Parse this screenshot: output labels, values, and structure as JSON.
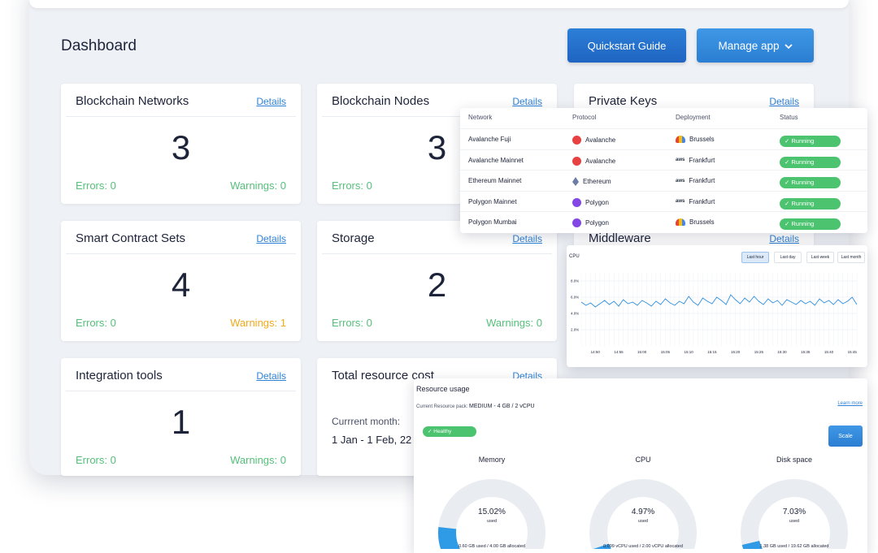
{
  "header": {
    "title": "Dashboard",
    "quickstart_label": "Quickstart Guide",
    "manage_label": "Manage app"
  },
  "cards": [
    {
      "title": "Blockchain Networks",
      "link": "Details",
      "value": "3",
      "errors": "Errors: 0",
      "warnings": "Warnings: 0"
    },
    {
      "title": "Blockchain Nodes",
      "link": "Details",
      "value": "3",
      "errors": "Errors: 0",
      "warnings": ""
    },
    {
      "title": "Private Keys",
      "link": "Details"
    },
    {
      "title": "Smart Contract Sets",
      "link": "Details",
      "value": "4",
      "errors": "Errors: 0",
      "warnings": "Warnings: 1"
    },
    {
      "title": "Storage",
      "link": "Details",
      "value": "2",
      "errors": "Errors: 0",
      "warnings": "Warnings: 0"
    },
    {
      "title": "Middleware",
      "link": "Details"
    },
    {
      "title": "Integration tools",
      "link": "Details",
      "value": "1",
      "errors": "Errors: 0",
      "warnings": "Warnings: 0"
    },
    {
      "title": "Total resource cost",
      "link": "Details",
      "month_label": "Currrent month:",
      "range": "1 Jan - 1 Feb, 22"
    }
  ],
  "networks": {
    "headers": [
      "Network",
      "Protocol",
      "Deployment",
      "Status"
    ],
    "rows": [
      {
        "network": "Avalanche Fuji",
        "protocol": "Avalanche",
        "protocol_icon": "avalanche-icon",
        "deployment": "Brussels",
        "deployment_icon": "google-cloud-icon",
        "status": "✓ Running"
      },
      {
        "network": "Avalanche Mainnet",
        "protocol": "Avalanche",
        "protocol_icon": "avalanche-icon",
        "deployment": "Frankfurt",
        "deployment_icon": "aws-icon",
        "status": "✓ Running"
      },
      {
        "network": "Ethereum Mainnet",
        "protocol": "Ethereum",
        "protocol_icon": "ethereum-icon",
        "deployment": "Frankfurt",
        "deployment_icon": "aws-icon",
        "status": "✓ Running"
      },
      {
        "network": "Polygon Mainnet",
        "protocol": "Polygon",
        "protocol_icon": "polygon-icon",
        "deployment": "Frankfurt",
        "deployment_icon": "aws-icon",
        "status": "✓ Running"
      },
      {
        "network": "Polygon Mumbai",
        "protocol": "Polygon",
        "protocol_icon": "polygon-icon",
        "deployment": "Brussels",
        "deployment_icon": "google-cloud-icon",
        "status": "✓ Running"
      }
    ]
  },
  "cpu_chart": {
    "label": "CPU",
    "buttons": [
      "Last hour",
      "Last day",
      "Last week",
      "Last month"
    ],
    "active_button": "Last hour"
  },
  "chart_data": {
    "type": "line",
    "title": "CPU",
    "x": [
      "14:47",
      "14:48",
      "14:49",
      "14:50",
      "14:51",
      "14:52",
      "14:53",
      "14:54",
      "14:55",
      "14:56",
      "14:57",
      "14:58",
      "14:59",
      "15:00",
      "15:01",
      "15:02",
      "15:03",
      "15:04",
      "15:05",
      "15:06",
      "15:07",
      "15:08",
      "15:09",
      "15:10",
      "15:11",
      "15:12",
      "15:13",
      "15:14",
      "15:15",
      "15:16",
      "15:17",
      "15:18",
      "15:19",
      "15:20",
      "15:21",
      "15:22",
      "15:23",
      "15:24",
      "15:25",
      "15:26",
      "15:27",
      "15:28",
      "15:29",
      "15:30",
      "15:31",
      "15:32",
      "15:33",
      "15:34",
      "15:35",
      "15:36",
      "15:37",
      "15:38",
      "15:39",
      "15:40",
      "15:41",
      "15:42",
      "15:43",
      "15:44",
      "15:45",
      "15:46"
    ],
    "series": [
      {
        "values": [
          5.4,
          5.0,
          5.3,
          4.8,
          5.2,
          5.6,
          5.1,
          5.5,
          4.9,
          5.7,
          5.2,
          5.4,
          5.0,
          5.6,
          5.3,
          4.9,
          5.5,
          5.1,
          5.8,
          5.3,
          5.0,
          5.5,
          5.2,
          6.1,
          5.4,
          5.0,
          5.9,
          5.5,
          5.2,
          6.0,
          5.6,
          5.1,
          6.3,
          5.7,
          5.2,
          5.9,
          5.4,
          6.1,
          5.5,
          5.1,
          5.8,
          5.3,
          5.6,
          5.0,
          5.7,
          5.4,
          5.1,
          5.6,
          5.2,
          5.5,
          5.0,
          5.8,
          5.3,
          5.6,
          5.1,
          5.7,
          5.2,
          5.5,
          6.0,
          5.1
        ]
      }
    ],
    "x_ticks": [
      "14:50",
      "14:55",
      "15:00",
      "15:05",
      "15:10",
      "15:15",
      "15:20",
      "15:25",
      "15:30",
      "15:35",
      "15:40",
      "15:45"
    ],
    "y_ticks": [
      "2.0%",
      "4.0%",
      "6.0%",
      "8.0%"
    ],
    "ylim": [
      0,
      9
    ],
    "grid": true,
    "color": "#2f8fe0"
  },
  "resource": {
    "title": "Resource usage",
    "pack_label": "Current Resource pack:",
    "pack_value": "MEDIUM -  4 GB / 2 vCPU",
    "learn_more": "Learn more",
    "health": "✓ Healthy",
    "scale_label": "Scale",
    "gauges": [
      {
        "label": "Memory",
        "percent": "15.02%",
        "fraction": 0.1502,
        "used": "used",
        "footer": "0.60 GB used / 4.00 GB allocated"
      },
      {
        "label": "CPU",
        "percent": "4.97%",
        "fraction": 0.0497,
        "used": "used",
        "footer": "0.099 vCPU used / 2.00 vCPU allocated"
      },
      {
        "label": "Disk space",
        "percent": "7.03%",
        "fraction": 0.0703,
        "used": "used",
        "footer": "1.38 GB used / 19.62 GB allocated"
      }
    ]
  },
  "colors": {
    "accent": "#2f82d6",
    "success": "#55c07a",
    "warning": "#f3a91c",
    "gauge_fill": "#2f9be6",
    "gauge_track": "#e9edf2"
  }
}
